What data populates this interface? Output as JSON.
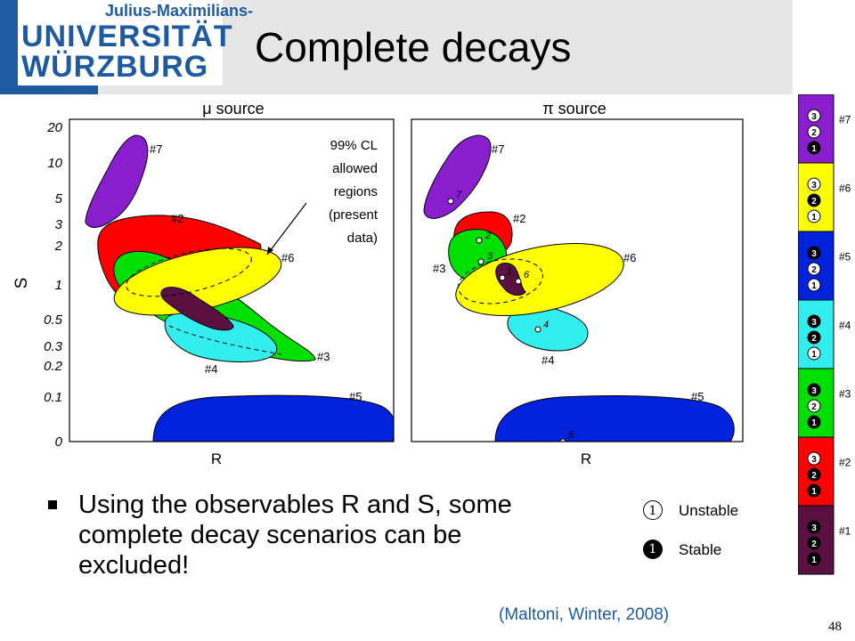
{
  "header": {
    "logo_line1": "Julius-Maximilians-",
    "logo_line2": "UNIVERSITÄT",
    "logo_line3": "WÜRZBURG",
    "title": "Complete decays"
  },
  "figure": {
    "panel_left_title": "μ source",
    "panel_right_title": "π source",
    "y_axis_label": "S",
    "y_ticks": [
      "20",
      "10",
      "5",
      "3",
      "2",
      "1",
      "0.5",
      "0.3",
      "0.2",
      "0.1",
      "0"
    ],
    "x_label_left": "R",
    "x_label_right": "R",
    "annotation": [
      "99% CL",
      "allowed",
      "regions",
      "(present",
      "data)"
    ],
    "region_labels": [
      "#7",
      "#2",
      "#6",
      "#3",
      "#4",
      "#5"
    ],
    "region_colors": {
      "#1": "#5a1040",
      "#2": "#ff0000",
      "#3": "#00e000",
      "#4": "#33eeee",
      "#5": "#0022dd",
      "#6": "#ffff00",
      "#7": "#8a1ecf"
    },
    "point_labels_right": [
      "7",
      "2",
      "3",
      "1",
      "6",
      "4",
      "5"
    ],
    "scenario_legend": [
      {
        "name": "#7",
        "color": "#8a1ecf",
        "stable": [
          1
        ]
      },
      {
        "name": "#6",
        "color": "#ffff00",
        "stable": [
          2
        ]
      },
      {
        "name": "#5",
        "color": "#0022dd",
        "stable": [
          3
        ]
      },
      {
        "name": "#4",
        "color": "#33eeee",
        "stable": [
          3,
          2
        ]
      },
      {
        "name": "#3",
        "color": "#00e000",
        "stable": [
          3,
          1
        ]
      },
      {
        "name": "#2",
        "color": "#ff0000",
        "stable": [
          2,
          1
        ]
      },
      {
        "name": "#1",
        "color": "#5a1040",
        "stable": [
          3,
          2,
          1
        ]
      }
    ],
    "state_numbers": [
      "3",
      "2",
      "1"
    ]
  },
  "key": {
    "unstable_symbol": "1",
    "unstable_label": "Unstable",
    "stable_symbol": "1",
    "stable_label": "Stable"
  },
  "bullet": {
    "text": "Using the observables R and S, some complete decay scenarios can be excluded!"
  },
  "citation": "(Maltoni, Winter, 2008)",
  "page_number": "48"
}
